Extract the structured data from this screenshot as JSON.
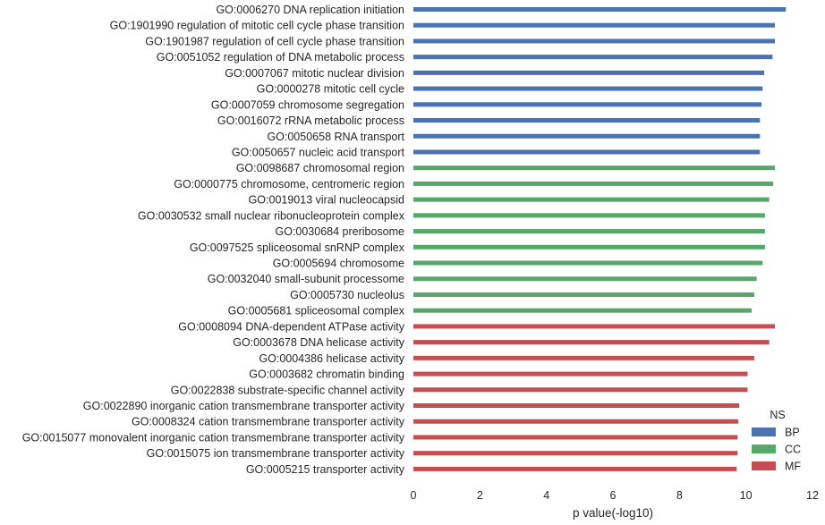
{
  "chart_data": {
    "type": "bar",
    "orientation": "horizontal",
    "xlabel": "p value(-log10)",
    "xlim": [
      0,
      12
    ],
    "xticks": [
      "0",
      "2",
      "4",
      "6",
      "8",
      "10",
      "12"
    ],
    "grid": false,
    "legend": {
      "title": "NS",
      "placement": "lower-right",
      "entries": [
        {
          "name": "BP",
          "color": "#4c72b0"
        },
        {
          "name": "CC",
          "color": "#55a868"
        },
        {
          "name": "MF",
          "color": "#c44e52"
        }
      ]
    },
    "bars": [
      {
        "label": "GO:0006270 DNA replication initiation",
        "ns": "BP",
        "value": 11.2
      },
      {
        "label": "GO:1901990 regulation of mitotic cell cycle phase transition",
        "ns": "BP",
        "value": 10.87
      },
      {
        "label": "GO:1901987 regulation of cell cycle phase transition",
        "ns": "BP",
        "value": 10.87
      },
      {
        "label": "GO:0051052 regulation of DNA metabolic process",
        "ns": "BP",
        "value": 10.8
      },
      {
        "label": "GO:0007067 mitotic nuclear division",
        "ns": "BP",
        "value": 10.55
      },
      {
        "label": "GO:0000278 mitotic cell cycle",
        "ns": "BP",
        "value": 10.5
      },
      {
        "label": "GO:0007059 chromosome segregation",
        "ns": "BP",
        "value": 10.47
      },
      {
        "label": "GO:0016072 rRNA metabolic process",
        "ns": "BP",
        "value": 10.42
      },
      {
        "label": "GO:0050658 RNA transport",
        "ns": "BP",
        "value": 10.42
      },
      {
        "label": "GO:0050657 nucleic acid transport",
        "ns": "BP",
        "value": 10.42
      },
      {
        "label": "GO:0098687 chromosomal region",
        "ns": "CC",
        "value": 10.87
      },
      {
        "label": "GO:0000775 chromosome, centromeric region",
        "ns": "CC",
        "value": 10.82
      },
      {
        "label": "GO:0019013 viral nucleocapsid",
        "ns": "CC",
        "value": 10.7
      },
      {
        "label": "GO:0030532 small nuclear ribonucleoprotein complex",
        "ns": "CC",
        "value": 10.57
      },
      {
        "label": "GO:0030684 preribosome",
        "ns": "CC",
        "value": 10.57
      },
      {
        "label": "GO:0097525 spliceosomal snRNP complex",
        "ns": "CC",
        "value": 10.57
      },
      {
        "label": "GO:0005694 chromosome",
        "ns": "CC",
        "value": 10.5
      },
      {
        "label": "GO:0032040 small-subunit processome",
        "ns": "CC",
        "value": 10.32
      },
      {
        "label": "GO:0005730 nucleolus",
        "ns": "CC",
        "value": 10.25
      },
      {
        "label": "GO:0005681 spliceosomal complex",
        "ns": "CC",
        "value": 10.17
      },
      {
        "label": "GO:0008094 DNA-dependent ATPase activity",
        "ns": "MF",
        "value": 10.87
      },
      {
        "label": "GO:0003678 DNA helicase activity",
        "ns": "MF",
        "value": 10.7
      },
      {
        "label": "GO:0004386 helicase activity",
        "ns": "MF",
        "value": 10.25
      },
      {
        "label": "GO:0003682 chromatin binding",
        "ns": "MF",
        "value": 10.05
      },
      {
        "label": "GO:0022838 substrate-specific channel activity",
        "ns": "MF",
        "value": 10.05
      },
      {
        "label": "GO:0022890 inorganic cation transmembrane transporter activity",
        "ns": "MF",
        "value": 9.8
      },
      {
        "label": "GO:0008324 cation transmembrane transporter activity",
        "ns": "MF",
        "value": 9.77
      },
      {
        "label": "GO:0015077 monovalent inorganic cation transmembrane transporter activity",
        "ns": "MF",
        "value": 9.75
      },
      {
        "label": "GO:0015075 ion transmembrane transporter activity",
        "ns": "MF",
        "value": 9.75
      },
      {
        "label": "GO:0005215 transporter activity",
        "ns": "MF",
        "value": 9.72
      }
    ]
  }
}
